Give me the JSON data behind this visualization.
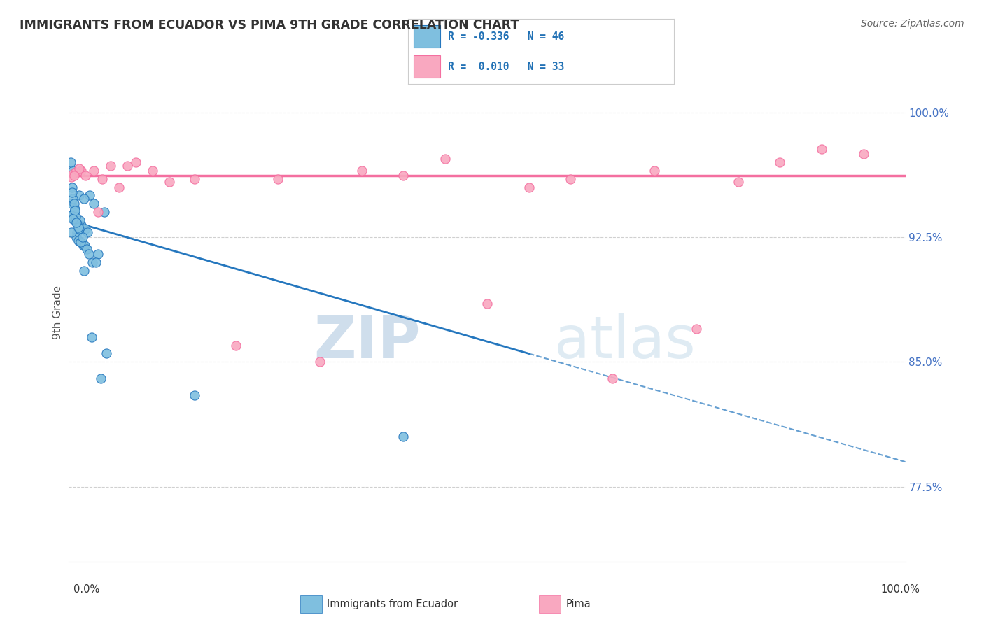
{
  "title": "IMMIGRANTS FROM ECUADOR VS PIMA 9TH GRADE CORRELATION CHART",
  "source": "Source: ZipAtlas.com",
  "ylabel": "9th Grade",
  "ylabel_right_ticks": [
    77.5,
    85.0,
    92.5,
    100.0
  ],
  "ylabel_right_labels": [
    "77.5%",
    "85.0%",
    "92.5%",
    "100.0%"
  ],
  "xlim": [
    0.0,
    100.0
  ],
  "ylim": [
    73.0,
    103.0
  ],
  "blue_R": -0.336,
  "blue_N": 46,
  "pink_R": 0.01,
  "pink_N": 33,
  "blue_color": "#7fbfdf",
  "pink_color": "#f9a8c0",
  "blue_line_color": "#2577be",
  "pink_line_color": "#f46fa0",
  "blue_scatter_x": [
    0.5,
    1.2,
    0.3,
    2.5,
    1.8,
    3.0,
    4.2,
    0.8,
    1.5,
    0.2,
    1.0,
    2.0,
    0.6,
    1.3,
    0.4,
    0.9,
    1.7,
    2.2,
    0.7,
    1.1,
    3.5,
    0.3,
    1.9,
    2.8,
    0.5,
    1.4,
    0.8,
    2.1,
    3.2,
    0.6,
    1.6,
    0.4,
    2.4,
    1.0,
    0.7,
    1.2,
    4.5,
    0.3,
    2.7,
    1.8,
    0.5,
    3.8,
    1.1,
    0.9,
    15.0,
    40.0
  ],
  "blue_scatter_y": [
    96.5,
    95.0,
    94.5,
    95.0,
    94.8,
    94.5,
    94.0,
    93.5,
    93.2,
    97.0,
    92.8,
    93.0,
    94.0,
    93.5,
    95.5,
    92.5,
    92.0,
    92.8,
    94.2,
    92.3,
    91.5,
    93.8,
    92.0,
    91.0,
    94.8,
    92.2,
    93.7,
    91.8,
    91.0,
    94.5,
    92.5,
    95.2,
    91.5,
    93.3,
    94.1,
    93.0,
    85.5,
    92.8,
    86.5,
    90.5,
    93.6,
    84.0,
    93.1,
    93.4,
    83.0,
    80.5
  ],
  "pink_scatter_x": [
    1.5,
    3.0,
    6.0,
    8.0,
    5.0,
    12.0,
    25.0,
    35.0,
    45.0,
    60.0,
    70.0,
    80.0,
    95.0,
    2.0,
    4.0,
    7.0,
    10.0,
    20.0,
    30.0,
    50.0,
    65.0,
    75.0,
    85.0,
    0.5,
    0.8,
    1.2,
    15.0,
    40.0,
    55.0,
    90.0,
    0.3,
    0.6,
    3.5
  ],
  "pink_scatter_y": [
    96.5,
    96.5,
    95.5,
    97.0,
    96.8,
    95.8,
    96.0,
    96.5,
    97.2,
    96.0,
    96.5,
    95.8,
    97.5,
    96.2,
    96.0,
    96.8,
    96.5,
    86.0,
    85.0,
    88.5,
    84.0,
    87.0,
    97.0,
    96.3,
    96.4,
    96.6,
    96.0,
    96.2,
    95.5,
    97.8,
    96.1,
    96.2,
    94.0
  ],
  "pink_hline_y": 96.2,
  "blue_solid_x0": 0.0,
  "blue_solid_y0": 93.5,
  "blue_solid_x1": 55.0,
  "blue_solid_y1": 85.5,
  "blue_dash_x0": 55.0,
  "blue_dash_y0": 85.5,
  "blue_dash_x1": 100.0,
  "blue_dash_y1": 79.0,
  "watermark_zip": "ZIP",
  "watermark_atlas": "atlas",
  "background_color": "#ffffff",
  "grid_color": "#d0d0d0",
  "title_color": "#333333",
  "right_axis_color": "#4472c4"
}
